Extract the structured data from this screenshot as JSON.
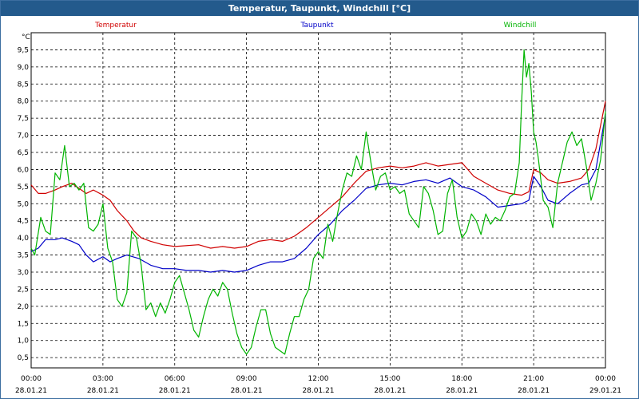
{
  "title": "Temperatur, Taupunkt, Windchill [°C]",
  "colors": {
    "titlebar": "#235a8c",
    "grid": "#000000",
    "temperatur": "#d00000",
    "taupunkt": "#0000c8",
    "windchill": "#00b400"
  },
  "chart_data": {
    "type": "line",
    "title": "Temperatur, Taupunkt, Windchill [°C]",
    "ylabel": "°C",
    "xlabel": "",
    "ylim": [
      0.2,
      10.0
    ],
    "xlim": [
      0,
      24
    ],
    "grid": true,
    "yticks": [
      {
        "value": 0.5,
        "label": "0,5"
      },
      {
        "value": 1.0,
        "label": "1,0"
      },
      {
        "value": 1.5,
        "label": "1,5"
      },
      {
        "value": 2.0,
        "label": "2,0"
      },
      {
        "value": 2.5,
        "label": "2,5"
      },
      {
        "value": 3.0,
        "label": "3,0"
      },
      {
        "value": 3.5,
        "label": "3,5"
      },
      {
        "value": 4.0,
        "label": "4,0"
      },
      {
        "value": 4.5,
        "label": "4,5"
      },
      {
        "value": 5.0,
        "label": "5,0"
      },
      {
        "value": 5.5,
        "label": "5,5"
      },
      {
        "value": 6.0,
        "label": "6,0"
      },
      {
        "value": 6.5,
        "label": "6,5"
      },
      {
        "value": 7.0,
        "label": "7,0"
      },
      {
        "value": 7.5,
        "label": "7,5"
      },
      {
        "value": 8.0,
        "label": "8,0"
      },
      {
        "value": 8.5,
        "label": "8,5"
      },
      {
        "value": 9.0,
        "label": "9,0"
      },
      {
        "value": 9.5,
        "label": "9,5"
      }
    ],
    "xticks": [
      {
        "value": 0,
        "time": "00:00",
        "date": "28.01.21"
      },
      {
        "value": 3,
        "time": "03:00",
        "date": "28.01.21"
      },
      {
        "value": 6,
        "time": "06:00",
        "date": "28.01.21"
      },
      {
        "value": 9,
        "time": "09:00",
        "date": "28.01.21"
      },
      {
        "value": 12,
        "time": "12:00",
        "date": "28.01.21"
      },
      {
        "value": 15,
        "time": "15:00",
        "date": "28.01.21"
      },
      {
        "value": 18,
        "time": "18:00",
        "date": "28.01.21"
      },
      {
        "value": 21,
        "time": "21:00",
        "date": "28.01.21"
      },
      {
        "value": 24,
        "time": "00:00",
        "date": "29.01.21"
      }
    ],
    "series": [
      {
        "name": "Temperatur",
        "color": "#d00000",
        "x": [
          0,
          0.3,
          0.6,
          1.0,
          1.3,
          1.7,
          2.0,
          2.3,
          2.6,
          3.0,
          3.3,
          3.6,
          4.0,
          4.3,
          4.6,
          5.0,
          5.5,
          6.0,
          7.0,
          7.5,
          8.0,
          8.5,
          9.0,
          9.5,
          10.0,
          10.5,
          11.0,
          11.5,
          12.0,
          12.5,
          13.0,
          13.5,
          14.0,
          14.5,
          15.0,
          15.5,
          16.0,
          16.5,
          17.0,
          17.5,
          18.0,
          18.5,
          19.0,
          19.5,
          20.0,
          20.5,
          20.8,
          21.0,
          21.3,
          21.6,
          22.0,
          22.5,
          23.0,
          23.3,
          23.6,
          24.0
        ],
        "values": [
          5.55,
          5.3,
          5.3,
          5.4,
          5.5,
          5.6,
          5.45,
          5.3,
          5.4,
          5.25,
          5.1,
          4.8,
          4.5,
          4.2,
          4.0,
          3.9,
          3.8,
          3.75,
          3.8,
          3.7,
          3.75,
          3.7,
          3.75,
          3.9,
          3.95,
          3.9,
          4.05,
          4.3,
          4.6,
          4.9,
          5.2,
          5.6,
          5.95,
          6.05,
          6.1,
          6.05,
          6.1,
          6.2,
          6.1,
          6.15,
          6.2,
          5.8,
          5.6,
          5.4,
          5.3,
          5.25,
          5.35,
          6.0,
          5.9,
          5.7,
          5.6,
          5.65,
          5.75,
          6.0,
          6.6,
          8.0
        ]
      },
      {
        "name": "Taupunkt",
        "color": "#0000c8",
        "x": [
          0,
          0.3,
          0.6,
          1.0,
          1.3,
          1.7,
          2.0,
          2.3,
          2.6,
          3.0,
          3.3,
          3.6,
          4.0,
          4.5,
          5.0,
          5.5,
          6.0,
          6.5,
          7.0,
          7.5,
          8.0,
          8.5,
          9.0,
          9.5,
          10.0,
          10.5,
          11.0,
          11.5,
          12.0,
          12.5,
          13.0,
          13.5,
          14.0,
          14.5,
          15.0,
          15.5,
          16.0,
          16.5,
          17.0,
          17.5,
          18.0,
          18.5,
          19.0,
          19.5,
          20.0,
          20.5,
          20.8,
          21.0,
          21.3,
          21.6,
          22.0,
          22.5,
          23.0,
          23.3,
          23.6,
          24.0
        ],
        "values": [
          3.6,
          3.7,
          3.95,
          3.95,
          4.0,
          3.9,
          3.8,
          3.5,
          3.3,
          3.45,
          3.3,
          3.4,
          3.5,
          3.4,
          3.2,
          3.1,
          3.1,
          3.05,
          3.05,
          3.0,
          3.05,
          3.0,
          3.05,
          3.2,
          3.3,
          3.3,
          3.4,
          3.7,
          4.1,
          4.4,
          4.8,
          5.1,
          5.45,
          5.55,
          5.6,
          5.55,
          5.65,
          5.7,
          5.6,
          5.75,
          5.5,
          5.4,
          5.2,
          4.9,
          4.95,
          5.0,
          5.1,
          5.8,
          5.5,
          5.1,
          5.0,
          5.3,
          5.55,
          5.6,
          6.0,
          7.6
        ]
      },
      {
        "name": "Windchill",
        "color": "#00b400",
        "x": [
          0,
          0.15,
          0.4,
          0.6,
          0.8,
          1.0,
          1.2,
          1.4,
          1.6,
          1.8,
          2.0,
          2.2,
          2.4,
          2.6,
          2.8,
          3.0,
          3.2,
          3.4,
          3.6,
          3.8,
          4.0,
          4.2,
          4.4,
          4.6,
          4.8,
          5.0,
          5.2,
          5.4,
          5.6,
          5.8,
          6.0,
          6.2,
          6.4,
          6.6,
          6.8,
          7.0,
          7.2,
          7.4,
          7.6,
          7.8,
          8.0,
          8.2,
          8.4,
          8.6,
          8.8,
          9.0,
          9.2,
          9.4,
          9.6,
          9.8,
          10.0,
          10.2,
          10.4,
          10.6,
          10.8,
          11.0,
          11.2,
          11.4,
          11.6,
          11.8,
          12.0,
          12.2,
          12.4,
          12.6,
          12.8,
          13.0,
          13.2,
          13.4,
          13.6,
          13.8,
          14.0,
          14.2,
          14.4,
          14.6,
          14.8,
          15.0,
          15.2,
          15.4,
          15.6,
          15.8,
          16.0,
          16.2,
          16.4,
          16.6,
          16.8,
          17.0,
          17.2,
          17.4,
          17.6,
          17.8,
          18.0,
          18.2,
          18.4,
          18.6,
          18.8,
          19.0,
          19.2,
          19.4,
          19.6,
          19.8,
          20.0,
          20.2,
          20.4,
          20.5,
          20.6,
          20.7,
          20.8,
          20.9,
          21.0,
          21.1,
          21.2,
          21.4,
          21.6,
          21.8,
          22.0,
          22.2,
          22.4,
          22.6,
          22.8,
          23.0,
          23.2,
          23.4,
          23.6,
          23.8,
          24.0
        ],
        "values": [
          3.7,
          3.5,
          4.6,
          4.2,
          4.1,
          5.9,
          5.7,
          6.7,
          5.5,
          5.6,
          5.4,
          5.6,
          4.3,
          4.2,
          4.4,
          5.0,
          3.7,
          3.3,
          2.2,
          2.0,
          2.4,
          4.2,
          4.0,
          3.2,
          1.9,
          2.1,
          1.7,
          2.1,
          1.8,
          2.2,
          2.7,
          2.9,
          2.4,
          1.9,
          1.3,
          1.1,
          1.7,
          2.2,
          2.5,
          2.3,
          2.7,
          2.5,
          1.8,
          1.2,
          0.8,
          0.6,
          0.8,
          1.4,
          1.9,
          1.9,
          1.2,
          0.8,
          0.7,
          0.6,
          1.2,
          1.7,
          1.7,
          2.2,
          2.5,
          3.4,
          3.6,
          3.4,
          4.4,
          3.9,
          4.7,
          5.4,
          5.9,
          5.8,
          6.4,
          6.0,
          7.1,
          6.2,
          5.4,
          5.8,
          5.9,
          5.4,
          5.5,
          5.3,
          5.4,
          4.7,
          4.5,
          4.3,
          5.5,
          5.3,
          4.8,
          4.1,
          4.2,
          5.3,
          5.7,
          4.6,
          4.0,
          4.2,
          4.7,
          4.5,
          4.1,
          4.7,
          4.4,
          4.6,
          4.5,
          4.8,
          5.2,
          5.3,
          6.2,
          8.0,
          9.5,
          8.7,
          9.1,
          8.3,
          7.1,
          6.8,
          6.3,
          5.1,
          4.9,
          4.3,
          5.6,
          6.2,
          6.8,
          7.1,
          6.7,
          6.9,
          6.1,
          5.1,
          5.6,
          6.3,
          7.7
        ]
      }
    ]
  }
}
